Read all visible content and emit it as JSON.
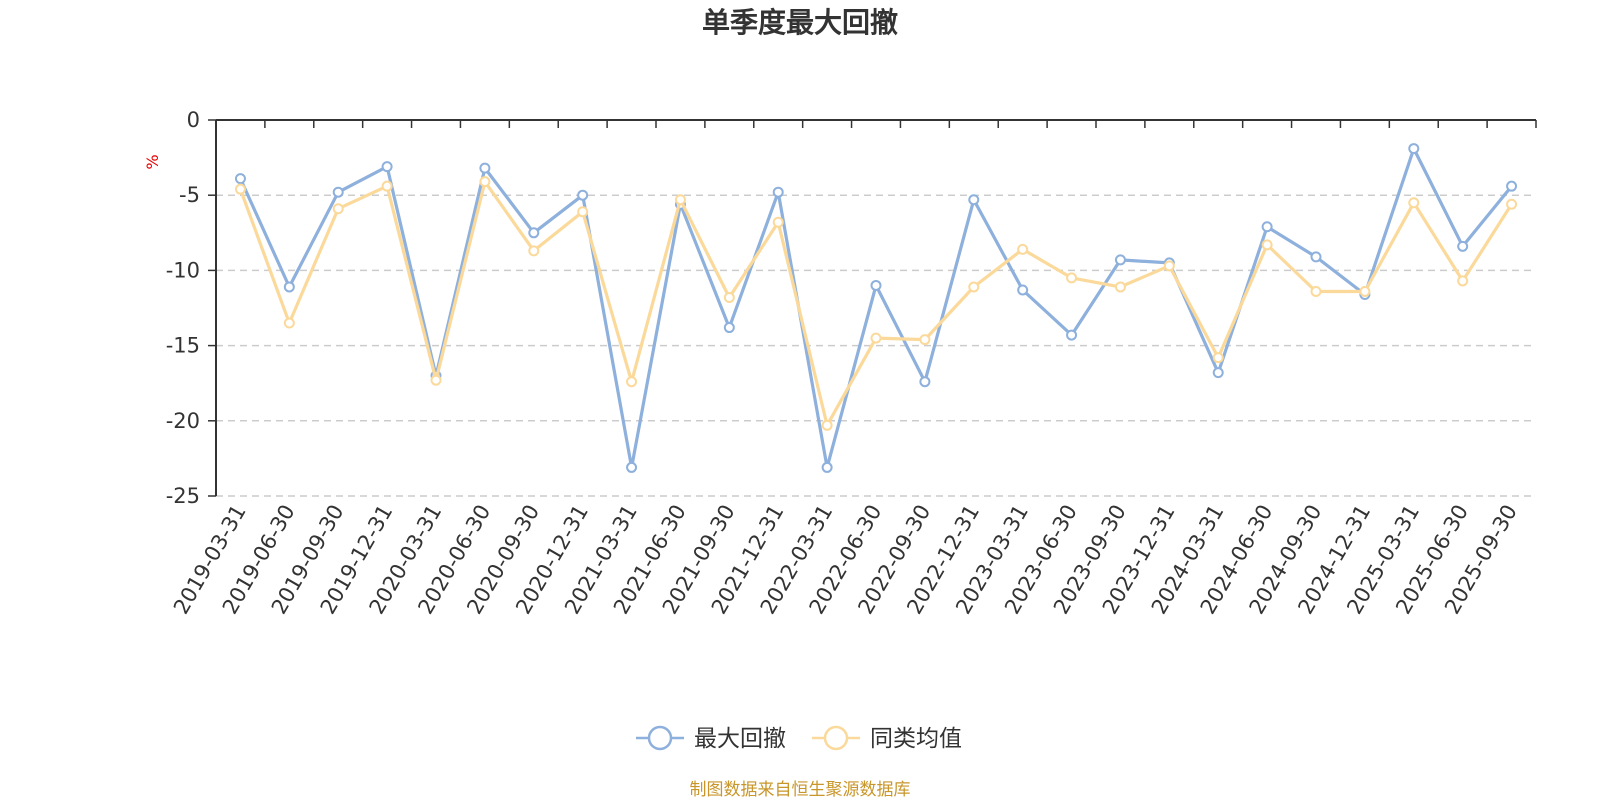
{
  "chart_data": {
    "type": "line",
    "title": "单季度最大回撤",
    "ylabel": "%",
    "xlabel": "",
    "ylim": [
      -25,
      0
    ],
    "yticks": [
      0,
      -5,
      -10,
      -15,
      -20,
      -25
    ],
    "grid": true,
    "legend_position": "bottom-center",
    "categories": [
      "2019-03-31",
      "2019-06-30",
      "2019-09-30",
      "2019-12-31",
      "2020-03-31",
      "2020-06-30",
      "2020-09-30",
      "2020-12-31",
      "2021-03-31",
      "2021-06-30",
      "2021-09-30",
      "2021-12-31",
      "2022-03-31",
      "2022-06-30",
      "2022-09-30",
      "2022-12-31",
      "2023-03-31",
      "2023-06-30",
      "2023-09-30",
      "2023-12-31",
      "2024-03-31",
      "2024-06-30",
      "2024-09-30",
      "2024-12-31",
      "2025-03-31",
      "2025-06-30",
      "2025-09-30"
    ],
    "series": [
      {
        "name": "最大回撤",
        "color": "#8eb0dc",
        "values": [
          -3.9,
          -11.1,
          -4.8,
          -3.1,
          -17.0,
          -3.2,
          -7.5,
          -5.0,
          -23.1,
          -5.6,
          -13.8,
          -4.8,
          -23.1,
          -11.0,
          -17.4,
          -5.3,
          -11.3,
          -14.3,
          -9.3,
          -9.5,
          -16.8,
          -7.1,
          -9.1,
          -11.6,
          -1.9,
          -8.4,
          -4.4
        ]
      },
      {
        "name": "同类均值",
        "color": "#fbd99a",
        "values": [
          -4.6,
          -13.5,
          -5.9,
          -4.4,
          -17.3,
          -4.1,
          -8.7,
          -6.1,
          -17.4,
          -5.3,
          -11.8,
          -6.8,
          -20.3,
          -14.5,
          -14.6,
          -11.1,
          -8.6,
          -10.5,
          -11.1,
          -9.7,
          -15.8,
          -8.3,
          -11.4,
          -11.4,
          -5.5,
          -10.7,
          -5.6
        ]
      }
    ]
  },
  "source_text": "制图数据来自恒生聚源数据库"
}
